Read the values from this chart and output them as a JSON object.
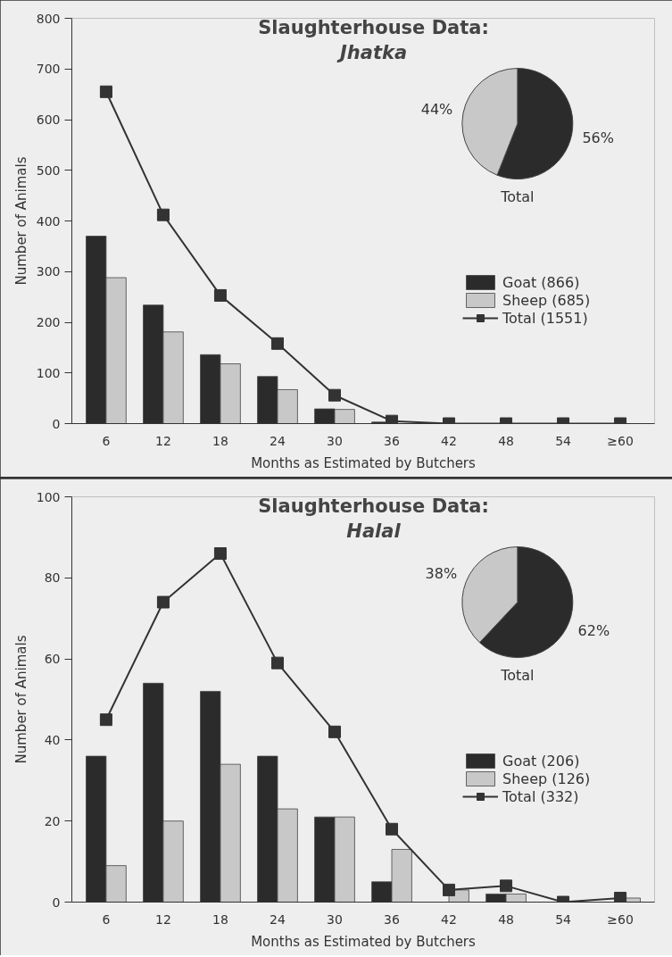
{
  "chart_data": [
    {
      "type": "bar",
      "title": "Slaughterhouse Data:",
      "subtitle": "Jhatka",
      "categories": [
        "6",
        "12",
        "18",
        "24",
        "30",
        "36",
        "42",
        "48",
        "54",
        "≥60"
      ],
      "xlabel": "Months as Estimated by Butchers",
      "ylabel": "Number of Animals",
      "ylim": [
        0,
        800
      ],
      "yticks": [
        0,
        100,
        200,
        300,
        400,
        500,
        600,
        700,
        800
      ],
      "legend": "right",
      "series": [
        {
          "name": "Goat (866)",
          "color": "#2b2b2b",
          "values": [
            370,
            234,
            136,
            93,
            29,
            3,
            0,
            0,
            0,
            0
          ]
        },
        {
          "name": "Sheep (685)",
          "color": "#c8c8c8",
          "values": [
            288,
            181,
            118,
            67,
            28,
            null,
            0,
            0,
            0,
            0
          ]
        },
        {
          "name": "Total (1551)",
          "type": "line",
          "color": "#333333",
          "marker": "square",
          "values": [
            655,
            412,
            253,
            158,
            56,
            5,
            0,
            0,
            0,
            0
          ]
        }
      ]
    },
    {
      "type": "pie",
      "title": "Total",
      "categories": [
        null,
        null
      ],
      "values": [
        56,
        44
      ],
      "colors": [
        "#2b2b2b",
        "#c8c8c8"
      ],
      "value_labels": [
        "56%",
        "44%"
      ]
    },
    {
      "type": "bar",
      "title": "Slaughterhouse Data:",
      "subtitle": "Halal",
      "categories": [
        "6",
        "12",
        "18",
        "24",
        "30",
        "36",
        "42",
        "48",
        "54",
        "≥60"
      ],
      "xlabel": "Months as Estimated by Butchers",
      "ylabel": "Number of Animals",
      "ylim": [
        0,
        100
      ],
      "yticks": [
        0,
        20,
        40,
        60,
        80,
        100
      ],
      "legend": "right",
      "series": [
        {
          "name": "Goat (206)",
          "color": "#2b2b2b",
          "values": [
            36,
            54,
            52,
            36,
            21,
            5,
            0,
            2,
            0,
            0
          ]
        },
        {
          "name": "Sheep (126)",
          "color": "#c8c8c8",
          "values": [
            9,
            20,
            34,
            23,
            21,
            13,
            3,
            2,
            0,
            1
          ]
        },
        {
          "name": "Total (332)",
          "type": "line",
          "color": "#333333",
          "marker": "square",
          "values": [
            45,
            74,
            86,
            59,
            42,
            18,
            3,
            4,
            0,
            1
          ]
        }
      ]
    },
    {
      "type": "pie",
      "title": "Total",
      "categories": [
        null,
        null
      ],
      "values": [
        62,
        38
      ],
      "colors": [
        "#2b2b2b",
        "#c8c8c8"
      ],
      "value_labels": [
        "62%",
        "38%"
      ]
    }
  ]
}
